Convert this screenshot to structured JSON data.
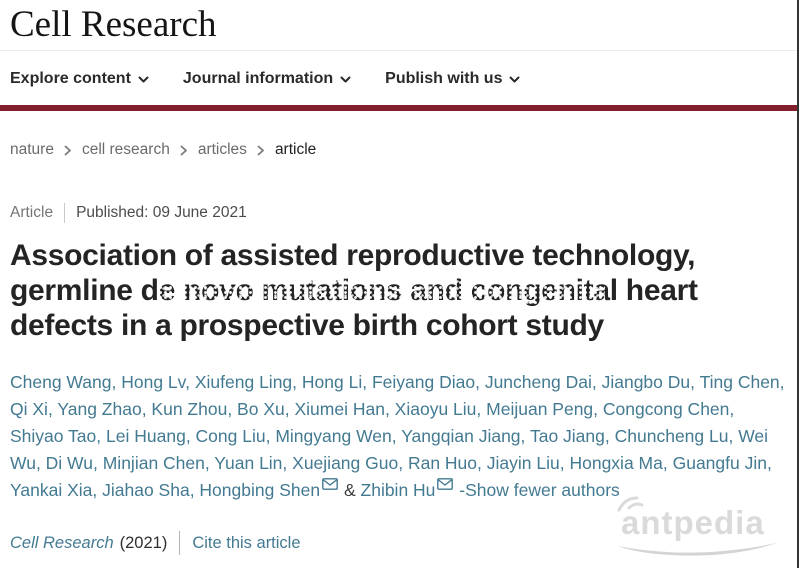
{
  "masthead": {
    "title": "Cell Research"
  },
  "nav": {
    "items": [
      {
        "label": "Explore content"
      },
      {
        "label": "Journal information"
      },
      {
        "label": "Publish with us"
      }
    ]
  },
  "breadcrumb": {
    "items": [
      {
        "label": "nature",
        "current": false
      },
      {
        "label": "cell research",
        "current": false
      },
      {
        "label": "articles",
        "current": false
      },
      {
        "label": "article",
        "current": true
      }
    ]
  },
  "meta": {
    "article_type": "Article",
    "published_label": "Published:",
    "published_date": "09 June 2021",
    "published_full": "Published: 09 June 2021"
  },
  "title": {
    "full": "Association of assisted reproductive technology, germline de novo mutations and congenital heart defects in a prospective birth cohort study",
    "lines": {
      "0": "Association of assisted reproductive technology,",
      "1": "germline de novo mutations and congenital heart",
      "2": "defects in a prospective birth cohort study"
    }
  },
  "authors": {
    "names": [
      "Cheng Wang",
      "Hong Lv",
      "Xiufeng Ling",
      "Hong Li",
      "Feiyang Diao",
      "Juncheng Dai",
      "Jiangbo Du",
      "Ting Chen",
      "Qi Xi",
      "Yang Zhao",
      "Kun Zhou",
      "Bo Xu",
      "Xiumei Han",
      "Xiaoyu Liu",
      "Meijuan Peng",
      "Congcong Chen",
      "Shiyao Tao",
      "Lei Huang",
      "Cong Liu",
      "Mingyang Wen",
      "Yangqian Jiang",
      "Tao Jiang",
      "Chuncheng Lu",
      "Wei Wu",
      "Di Wu",
      "Minjian Chen",
      "Yuan Lin",
      "Xuejiang Guo",
      "Ran Huo",
      "Jiayin Liu",
      "Hongxia Ma",
      "Guangfu Jin",
      "Yankai Xia",
      "Jiahao Sha",
      "Hongbing Shen",
      "Zhibin Hu"
    ],
    "corresponding": [
      "Hongbing Shen",
      "Zhibin Hu"
    ],
    "separator": ", ",
    "ampersand": "&",
    "show_fewer_label": "-Show fewer authors"
  },
  "citation": {
    "journal": "Cell Research",
    "year": "(2021)",
    "cite_link": "Cite this article"
  },
  "watermark": {
    "text": "antpedia"
  },
  "colors": {
    "brand_maroon": "#84202e",
    "link_teal": "#437a92",
    "text_dark": "#262626",
    "breadcrumb_gray": "#6b6b6b",
    "watermark_gray": "#dadada"
  }
}
